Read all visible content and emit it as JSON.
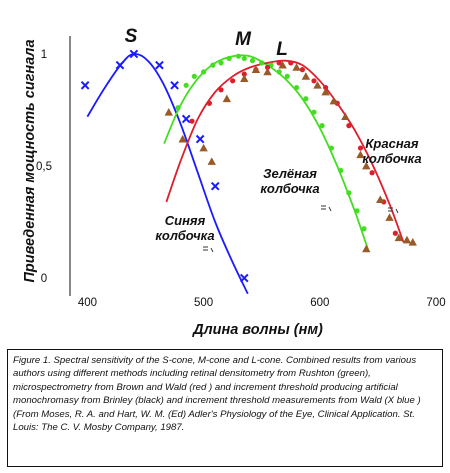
{
  "chart_data": {
    "type": "line",
    "ylabel": "Приведенная мощность сигнала",
    "xlabel": "Длина волны (нм)",
    "xlim": [
      385,
      700
    ],
    "ylim": [
      -0.08,
      1.08
    ],
    "x_ticks": [
      400,
      500,
      600,
      700
    ],
    "x_tick_labels": [
      "400",
      "500",
      "600",
      "700"
    ],
    "y_ticks": [
      0,
      0.5,
      1
    ],
    "y_tick_labels": [
      "0",
      "0,5",
      "1"
    ],
    "grid": false,
    "curve_letters": [
      "S",
      "M",
      "L"
    ],
    "cone_labels": [
      {
        "lines": [
          "Синяя",
          "колбочка"
        ]
      },
      {
        "lines": [
          "Зелёная",
          "колбочка"
        ]
      },
      {
        "lines": [
          "Красная",
          "колбочка"
        ]
      }
    ],
    "series": [
      {
        "color": "#1a1aff",
        "marker": "x",
        "curve": [
          [
            400,
            0.72
          ],
          [
            415,
            0.85
          ],
          [
            430,
            0.96
          ],
          [
            440,
            1.0
          ],
          [
            452,
            0.97
          ],
          [
            465,
            0.87
          ],
          [
            480,
            0.69
          ],
          [
            495,
            0.47
          ],
          [
            510,
            0.25
          ],
          [
            525,
            0.07
          ],
          [
            538,
            -0.07
          ]
        ],
        "points": [
          [
            398,
            0.86
          ],
          [
            428,
            0.95
          ],
          [
            440,
            1.0
          ],
          [
            462,
            0.95
          ],
          [
            475,
            0.86
          ],
          [
            485,
            0.71
          ],
          [
            497,
            0.62
          ],
          [
            510,
            0.41
          ],
          [
            535,
            0.0
          ]
        ]
      },
      {
        "color": "#44dd22",
        "marker": "dot",
        "curve": [
          [
            466,
            0.6
          ],
          [
            480,
            0.77
          ],
          [
            495,
            0.89
          ],
          [
            510,
            0.96
          ],
          [
            525,
            0.99
          ],
          [
            540,
            0.99
          ],
          [
            555,
            0.95
          ],
          [
            570,
            0.89
          ],
          [
            585,
            0.8
          ],
          [
            600,
            0.67
          ],
          [
            615,
            0.5
          ],
          [
            630,
            0.3
          ],
          [
            642,
            0.12
          ]
        ],
        "points": [
          [
            478,
            0.76
          ],
          [
            485,
            0.86
          ],
          [
            492,
            0.9
          ],
          [
            500,
            0.92
          ],
          [
            508,
            0.95
          ],
          [
            515,
            0.96
          ],
          [
            522,
            0.98
          ],
          [
            530,
            0.99
          ],
          [
            535,
            0.98
          ],
          [
            542,
            0.97
          ],
          [
            550,
            0.96
          ],
          [
            558,
            0.95
          ],
          [
            565,
            0.92
          ],
          [
            572,
            0.9
          ],
          [
            580,
            0.85
          ],
          [
            588,
            0.8
          ],
          [
            595,
            0.74
          ],
          [
            602,
            0.68
          ],
          [
            610,
            0.58
          ],
          [
            618,
            0.48
          ],
          [
            625,
            0.38
          ],
          [
            632,
            0.3
          ],
          [
            638,
            0.22
          ]
        ]
      },
      {
        "color": "#dd1f2c",
        "marker": "dot",
        "curve": [
          [
            468,
            0.34
          ],
          [
            480,
            0.52
          ],
          [
            495,
            0.71
          ],
          [
            510,
            0.83
          ],
          [
            525,
            0.9
          ],
          [
            540,
            0.94
          ],
          [
            555,
            0.96
          ],
          [
            570,
            0.97
          ],
          [
            585,
            0.95
          ],
          [
            600,
            0.88
          ],
          [
            615,
            0.78
          ],
          [
            630,
            0.66
          ],
          [
            645,
            0.51
          ],
          [
            660,
            0.33
          ],
          [
            672,
            0.16
          ]
        ],
        "points": [
          [
            490,
            0.7
          ],
          [
            505,
            0.78
          ],
          [
            515,
            0.84
          ],
          [
            525,
            0.88
          ],
          [
            535,
            0.91
          ],
          [
            545,
            0.93
          ],
          [
            555,
            0.94
          ],
          [
            565,
            0.96
          ],
          [
            575,
            0.96
          ],
          [
            585,
            0.93
          ],
          [
            595,
            0.88
          ],
          [
            605,
            0.85
          ],
          [
            615,
            0.78
          ],
          [
            625,
            0.68
          ],
          [
            635,
            0.58
          ],
          [
            645,
            0.47
          ],
          [
            655,
            0.34
          ],
          [
            665,
            0.2
          ]
        ]
      },
      {
        "color": "#9a5a28",
        "marker": "triangle",
        "points": [
          [
            470,
            0.74
          ],
          [
            482,
            0.62
          ],
          [
            500,
            0.58
          ],
          [
            507,
            0.52
          ],
          [
            520,
            0.8
          ],
          [
            535,
            0.89
          ],
          [
            545,
            0.93
          ],
          [
            555,
            0.92
          ],
          [
            568,
            0.95
          ],
          [
            580,
            0.94
          ],
          [
            588,
            0.9
          ],
          [
            598,
            0.86
          ],
          [
            605,
            0.83
          ],
          [
            612,
            0.79
          ],
          [
            622,
            0.72
          ],
          [
            635,
            0.55
          ],
          [
            640,
            0.5
          ],
          [
            652,
            0.35
          ],
          [
            660,
            0.27
          ],
          [
            668,
            0.18
          ],
          [
            675,
            0.17
          ],
          [
            680,
            0.16
          ],
          [
            640,
            0.13
          ]
        ]
      }
    ]
  },
  "caption": "Figure 1. Spectral sensitivity of the S-cone, M-cone and L-cone. Combined results from various authors using different methods including retinal densitometry from Rushton (green), microspectrometry from Brown and Wald (red ) and increment threshold producing artificial monochromasy from Brinley (black) and increment threshold measurements from Wald (X blue ) (From Moses, R. A. and Hart, W. M. (Ed) Adler's Physiology of the Eye, Clinical Application. St. Louis: The C. V. Mosby Company, 1987."
}
